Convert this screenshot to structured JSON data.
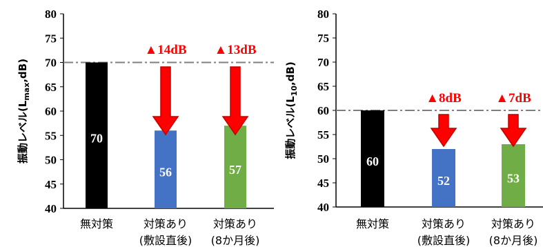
{
  "chart_data": [
    {
      "type": "bar",
      "ylabel": "振動レベル(L",
      "ylabel_sub": "max",
      "ylabel_suffix": ",dB)",
      "ylim": [
        40,
        80
      ],
      "yticks": [
        "40",
        "45",
        "50",
        "55",
        "60",
        "65",
        "70",
        "75",
        "80"
      ],
      "categories": [
        {
          "line1": "無対策",
          "line2": ""
        },
        {
          "line1": "対策あり",
          "line2": "(敷設直後)"
        },
        {
          "line1": "対策あり",
          "line2": "(8か月後)"
        }
      ],
      "values": [
        70,
        56,
        57
      ],
      "value_labels": [
        "70",
        "56",
        "57"
      ],
      "bar_colors": [
        "#000000",
        "#4472c4",
        "#70ad47"
      ],
      "reference_line": 70,
      "reductions": [
        {
          "category_index": 1,
          "text": "▲14dB"
        },
        {
          "category_index": 2,
          "text": "▲13dB"
        }
      ]
    },
    {
      "type": "bar",
      "ylabel": "振動レベル(L",
      "ylabel_sub": "10",
      "ylabel_suffix": ",dB)",
      "ylim": [
        40,
        80
      ],
      "yticks": [
        "40",
        "45",
        "50",
        "55",
        "60",
        "65",
        "70",
        "75",
        "80"
      ],
      "categories": [
        {
          "line1": "無対策",
          "line2": ""
        },
        {
          "line1": "対策あり",
          "line2": "(敷設直後)"
        },
        {
          "line1": "対策あり",
          "line2": "(8か月後)"
        }
      ],
      "values": [
        60,
        52,
        53
      ],
      "value_labels": [
        "60",
        "52",
        "53"
      ],
      "bar_colors": [
        "#000000",
        "#4472c4",
        "#70ad47"
      ],
      "reference_line": 60,
      "reductions": [
        {
          "category_index": 1,
          "text": "▲8dB"
        },
        {
          "category_index": 2,
          "text": "▲7dB"
        }
      ]
    }
  ],
  "colors": {
    "axis": "#000000",
    "reference_line": "#7f7f7f",
    "arrow": "#ff0000",
    "arrow_outline": "#c00000",
    "reduction_text": "#ff0000",
    "value_text": "#ffffff"
  }
}
